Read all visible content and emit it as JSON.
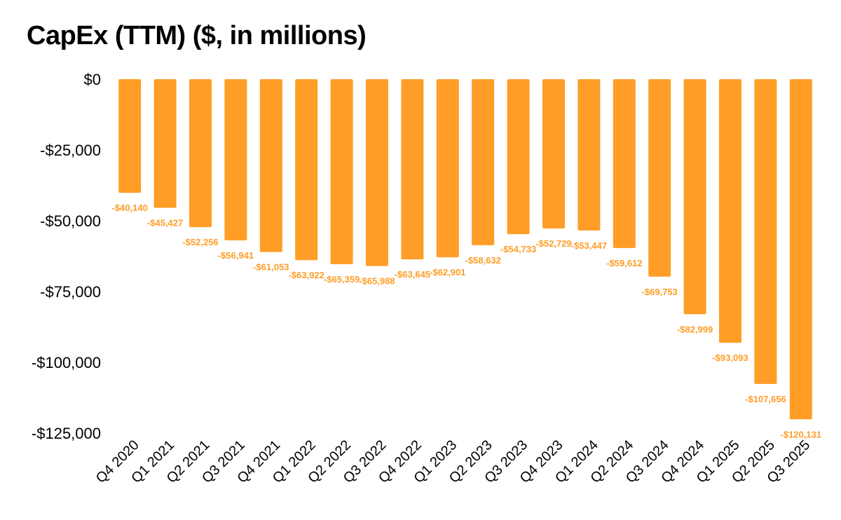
{
  "chart_data": {
    "type": "bar",
    "title": "CapEx (TTM) ($, in millions)",
    "xlabel": "",
    "ylabel": "",
    "grid": false,
    "legend": "none",
    "ylim": [
      -125000,
      0
    ],
    "yticks": [
      0,
      -25000,
      -50000,
      -75000,
      -100000,
      -125000
    ],
    "ytick_labels": [
      "$0",
      "-$25,000",
      "-$50,000",
      "-$75,000",
      "-$100,000",
      "-$125,000"
    ],
    "categories": [
      "Q4 2020",
      "Q1 2021",
      "Q2 2021",
      "Q3 2021",
      "Q4 2021",
      "Q1 2022",
      "Q2 2022",
      "Q3 2022",
      "Q4 2022",
      "Q1 2023",
      "Q2 2023",
      "Q3 2023",
      "Q4 2023",
      "Q1 2024",
      "Q2 2024",
      "Q3 2024",
      "Q4 2024",
      "Q1 2025",
      "Q2 2025",
      "Q3 2025"
    ],
    "series": [
      {
        "name": "CapEx (TTM)",
        "color": "#FF9D27",
        "values": [
          -40140,
          -45427,
          -52256,
          -56941,
          -61053,
          -63922,
          -65359,
          -65988,
          -63645,
          -62901,
          -58632,
          -54733,
          -52729,
          -53447,
          -59612,
          -69753,
          -82999,
          -93093,
          -107656,
          -120131
        ],
        "data_labels": [
          "-$40,140",
          "-$45,427",
          "-$52,256",
          "-$56,941",
          "-$61,053",
          "-$63,922",
          "-$65,359",
          "-$65,988",
          "-$63,645",
          "-$62,901",
          "-$58,632",
          "-$54,733",
          "-$52,729",
          "-$53,447",
          "-$59,612",
          "-$69,753",
          "-$82,999",
          "-$93,093",
          "-$107,656",
          "-$120,131"
        ]
      }
    ]
  }
}
